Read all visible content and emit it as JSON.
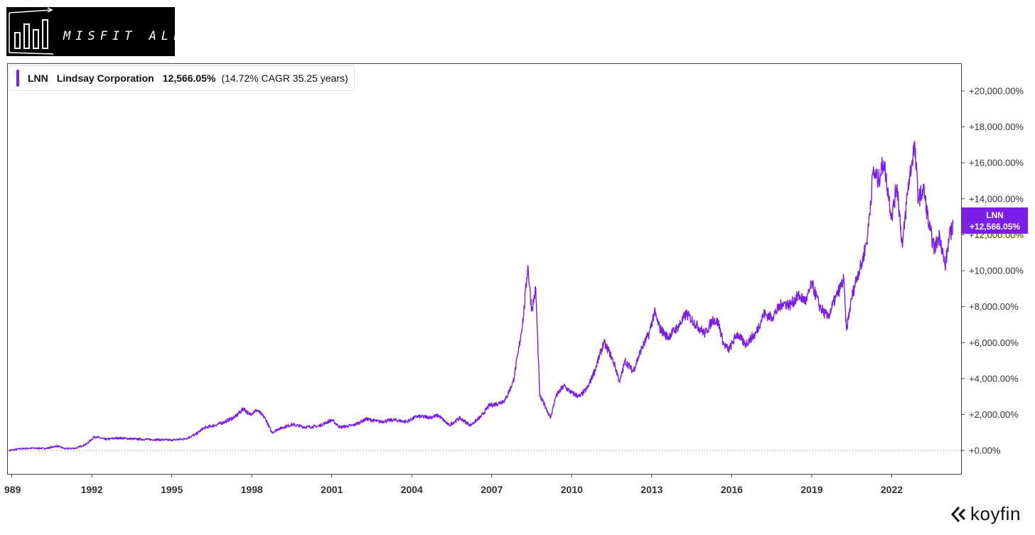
{
  "brand": {
    "logo_text": "MISFIT ALPHA",
    "watermark": "koyfin"
  },
  "colors": {
    "series": "#7b1fe8",
    "axis": "#444444",
    "text": "#333333"
  },
  "legend": {
    "ticker": "LNN",
    "name": "Lindsay Corporation",
    "value": "12,566.05%",
    "detail": "(14.72% CAGR 35.25 years)"
  },
  "badge": {
    "ticker": "LNN",
    "value": "+12,566.05%"
  },
  "chart_data": {
    "type": "line",
    "title": "",
    "xlabel": "",
    "ylabel": "",
    "x_ticks": [
      "989",
      "1992",
      "1995",
      "1998",
      "2001",
      "2004",
      "2007",
      "2010",
      "2013",
      "2016",
      "2019",
      "2022"
    ],
    "y_ticks": [
      "+0.00%",
      "+2,000.00%",
      "+4,000.00%",
      "+6,000.00%",
      "+8,000.00%",
      "+10,000.00%",
      "+12,000.00%",
      "+14,000.00%",
      "+16,000.00%",
      "+18,000.00%",
      "+20,000.00%"
    ],
    "y_tick_values": [
      0,
      2000,
      4000,
      6000,
      8000,
      10000,
      12000,
      14000,
      16000,
      18000,
      20000
    ],
    "ylim": [
      -1300,
      21500
    ],
    "xlim": [
      1988.85,
      2024.6
    ],
    "grid": false,
    "zero_line": "dotted",
    "series": [
      {
        "name": "LNN",
        "points": [
          [
            1988.9,
            0
          ],
          [
            1989.3,
            100
          ],
          [
            1989.8,
            130
          ],
          [
            1990.3,
            120
          ],
          [
            1990.7,
            250
          ],
          [
            1991.0,
            100
          ],
          [
            1991.4,
            130
          ],
          [
            1991.8,
            350
          ],
          [
            1992.1,
            780
          ],
          [
            1992.5,
            620
          ],
          [
            1993.0,
            700
          ],
          [
            1993.5,
            650
          ],
          [
            1994.0,
            620
          ],
          [
            1994.5,
            600
          ],
          [
            1995.0,
            580
          ],
          [
            1995.5,
            650
          ],
          [
            1995.9,
            900
          ],
          [
            1996.2,
            1250
          ],
          [
            1996.6,
            1400
          ],
          [
            1997.0,
            1600
          ],
          [
            1997.4,
            1900
          ],
          [
            1997.7,
            2350
          ],
          [
            1997.9,
            2000
          ],
          [
            1998.2,
            2250
          ],
          [
            1998.5,
            1800
          ],
          [
            1998.75,
            1000
          ],
          [
            1999.0,
            1200
          ],
          [
            1999.5,
            1450
          ],
          [
            2000.0,
            1300
          ],
          [
            2000.5,
            1350
          ],
          [
            2001.0,
            1700
          ],
          [
            2001.3,
            1300
          ],
          [
            2001.8,
            1400
          ],
          [
            2002.3,
            1750
          ],
          [
            2002.8,
            1600
          ],
          [
            2003.3,
            1700
          ],
          [
            2003.8,
            1600
          ],
          [
            2004.2,
            1900
          ],
          [
            2004.7,
            1850
          ],
          [
            2005.0,
            1950
          ],
          [
            2005.4,
            1400
          ],
          [
            2005.8,
            1800
          ],
          [
            2006.2,
            1400
          ],
          [
            2006.6,
            1900
          ],
          [
            2006.9,
            2500
          ],
          [
            2007.2,
            2600
          ],
          [
            2007.5,
            2800
          ],
          [
            2007.8,
            3800
          ],
          [
            2008.0,
            5500
          ],
          [
            2008.2,
            7600
          ],
          [
            2008.35,
            10300
          ],
          [
            2008.5,
            7800
          ],
          [
            2008.65,
            9000
          ],
          [
            2008.8,
            3000
          ],
          [
            2009.0,
            2500
          ],
          [
            2009.2,
            1800
          ],
          [
            2009.4,
            3000
          ],
          [
            2009.7,
            3600
          ],
          [
            2010.0,
            3200
          ],
          [
            2010.3,
            3000
          ],
          [
            2010.6,
            3500
          ],
          [
            2010.9,
            4600
          ],
          [
            2011.2,
            6000
          ],
          [
            2011.4,
            5500
          ],
          [
            2011.6,
            4800
          ],
          [
            2011.8,
            3800
          ],
          [
            2012.0,
            5000
          ],
          [
            2012.3,
            4400
          ],
          [
            2012.6,
            5600
          ],
          [
            2012.9,
            6500
          ],
          [
            2013.1,
            7700
          ],
          [
            2013.3,
            6800
          ],
          [
            2013.6,
            6300
          ],
          [
            2014.0,
            6900
          ],
          [
            2014.3,
            7600
          ],
          [
            2014.6,
            7100
          ],
          [
            2015.0,
            6500
          ],
          [
            2015.3,
            7300
          ],
          [
            2015.5,
            7100
          ],
          [
            2015.7,
            5900
          ],
          [
            2015.9,
            5600
          ],
          [
            2016.2,
            6500
          ],
          [
            2016.5,
            5900
          ],
          [
            2016.9,
            6500
          ],
          [
            2017.2,
            7600
          ],
          [
            2017.5,
            7400
          ],
          [
            2017.9,
            8200
          ],
          [
            2018.2,
            8100
          ],
          [
            2018.5,
            8600
          ],
          [
            2018.8,
            8300
          ],
          [
            2019.0,
            9300
          ],
          [
            2019.3,
            8000
          ],
          [
            2019.6,
            7400
          ],
          [
            2019.9,
            8500
          ],
          [
            2020.2,
            9500
          ],
          [
            2020.3,
            6700
          ],
          [
            2020.5,
            8500
          ],
          [
            2020.7,
            9700
          ],
          [
            2020.9,
            10500
          ],
          [
            2021.1,
            12000
          ],
          [
            2021.3,
            15500
          ],
          [
            2021.5,
            15000
          ],
          [
            2021.7,
            16100
          ],
          [
            2021.85,
            14500
          ],
          [
            2022.0,
            13000
          ],
          [
            2022.2,
            14800
          ],
          [
            2022.4,
            11300
          ],
          [
            2022.6,
            14500
          ],
          [
            2022.75,
            16000
          ],
          [
            2022.85,
            17000
          ],
          [
            2023.0,
            14000
          ],
          [
            2023.2,
            14500
          ],
          [
            2023.4,
            12500
          ],
          [
            2023.6,
            11200
          ],
          [
            2023.8,
            12000
          ],
          [
            2024.0,
            10200
          ],
          [
            2024.15,
            11800
          ],
          [
            2024.3,
            12566
          ]
        ]
      }
    ]
  }
}
